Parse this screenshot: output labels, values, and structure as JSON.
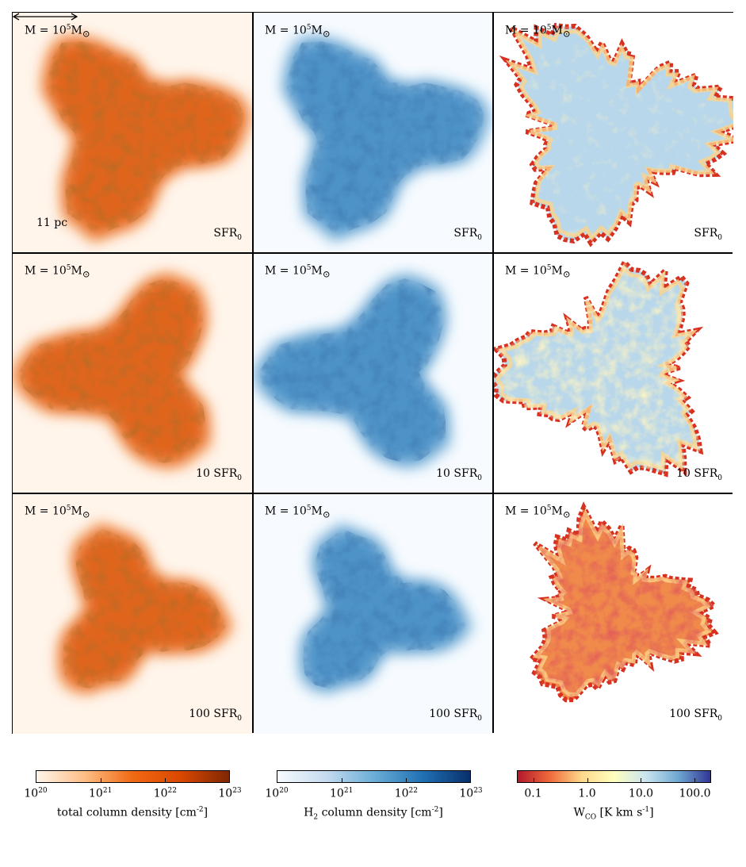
{
  "chart_data": {
    "type": "heatmap",
    "panels": [
      {
        "row": 0,
        "col": 0,
        "map": "total column density",
        "mass_label": "M = 10",
        "mass_exp": "5",
        "mass_unit": "M",
        "sfr_prefix": "",
        "sfr_label": "SFR",
        "sfr_sub": "0",
        "scale_bar": "11 pc"
      },
      {
        "row": 0,
        "col": 1,
        "map": "H2 column density",
        "mass_label": "M = 10",
        "mass_exp": "5",
        "mass_unit": "M",
        "sfr_prefix": "",
        "sfr_label": "SFR",
        "sfr_sub": "0"
      },
      {
        "row": 0,
        "col": 2,
        "map": "W_CO",
        "mass_label": "M = 10",
        "mass_exp": "5",
        "mass_unit": "M",
        "sfr_prefix": "",
        "sfr_label": "SFR",
        "sfr_sub": "0"
      },
      {
        "row": 1,
        "col": 0,
        "map": "total column density",
        "mass_label": "M = 10",
        "mass_exp": "5",
        "mass_unit": "M",
        "sfr_prefix": "10 ",
        "sfr_label": "SFR",
        "sfr_sub": "0"
      },
      {
        "row": 1,
        "col": 1,
        "map": "H2 column density",
        "mass_label": "M = 10",
        "mass_exp": "5",
        "mass_unit": "M",
        "sfr_prefix": "10 ",
        "sfr_label": "SFR",
        "sfr_sub": "0"
      },
      {
        "row": 1,
        "col": 2,
        "map": "W_CO",
        "mass_label": "M = 10",
        "mass_exp": "5",
        "mass_unit": "M",
        "sfr_prefix": "10 ",
        "sfr_label": "SFR",
        "sfr_sub": "0"
      },
      {
        "row": 2,
        "col": 0,
        "map": "total column density",
        "mass_label": "M = 10",
        "mass_exp": "5",
        "mass_unit": "M",
        "sfr_prefix": "100 ",
        "sfr_label": "SFR",
        "sfr_sub": "0"
      },
      {
        "row": 2,
        "col": 1,
        "map": "H2 column density",
        "mass_label": "M = 10",
        "mass_exp": "5",
        "mass_unit": "M",
        "sfr_prefix": "100 ",
        "sfr_label": "SFR",
        "sfr_sub": "0"
      },
      {
        "row": 2,
        "col": 2,
        "map": "W_CO",
        "mass_label": "M = 10",
        "mass_exp": "5",
        "mass_unit": "M",
        "sfr_prefix": "100 ",
        "sfr_label": "SFR",
        "sfr_sub": "0"
      }
    ],
    "colorbars": [
      {
        "label_pre": "total column density [cm",
        "label_sup": "-2",
        "label_post": "]",
        "label_sub": "",
        "scale": "log",
        "ticks": [
          {
            "base": "10",
            "exp": "20"
          },
          {
            "base": "10",
            "exp": "21"
          },
          {
            "base": "10",
            "exp": "22"
          },
          {
            "base": "10",
            "exp": "23"
          }
        ],
        "range": [
          1e+20,
          1e+23
        ],
        "colors": [
          "#fff5eb",
          "#fdbe85",
          "#f16913",
          "#d94801",
          "#7f2704"
        ]
      },
      {
        "label_pre": "H",
        "label_sub": "2",
        "label_mid": " column density [cm",
        "label_sup": "-2",
        "label_post": "]",
        "scale": "log",
        "ticks": [
          {
            "base": "10",
            "exp": "20"
          },
          {
            "base": "10",
            "exp": "21"
          },
          {
            "base": "10",
            "exp": "22"
          },
          {
            "base": "10",
            "exp": "23"
          }
        ],
        "range": [
          1e+20,
          1e+23
        ],
        "colors": [
          "#f7fbff",
          "#c6dbef",
          "#6baed6",
          "#2171b5",
          "#08306b"
        ]
      },
      {
        "label_pre": "W",
        "label_sub": "CO",
        "label_mid": " [K km s",
        "label_sup": "-1",
        "label_post": "]",
        "scale": "log",
        "ticks": [
          {
            "base": "0.1",
            "exp": ""
          },
          {
            "base": "1.0",
            "exp": ""
          },
          {
            "base": "10.0",
            "exp": ""
          },
          {
            "base": "100.0",
            "exp": ""
          }
        ],
        "range": [
          0.05,
          200
        ],
        "colors": [
          "#b2182b",
          "#ef6a3b",
          "#fdd98b",
          "#ffffbf",
          "#c9e4f0",
          "#6fa8d2",
          "#313695"
        ]
      }
    ]
  }
}
